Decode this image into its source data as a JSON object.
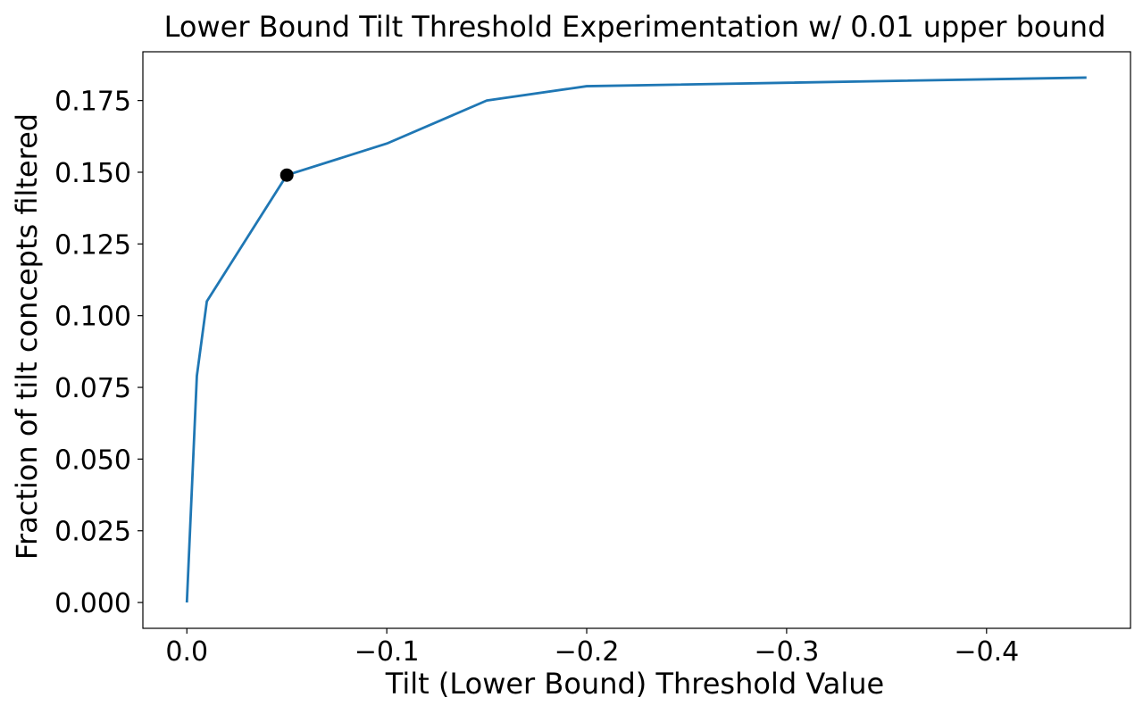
{
  "chart_data": {
    "type": "line",
    "title": "Lower Bound Tilt Threshold Experimentation w/ 0.01 upper bound",
    "xlabel": "Tilt (Lower Bound) Threshold Value",
    "ylabel": "Fraction of tilt concepts filtered",
    "x_inverted": true,
    "xlim": [
      0.022,
      -0.472
    ],
    "ylim": [
      -0.009,
      0.192
    ],
    "x_ticks": [
      0.0,
      -0.1,
      -0.2,
      -0.3,
      -0.4
    ],
    "x_tick_labels": [
      "0.0",
      "−0.1",
      "−0.2",
      "−0.3",
      "−0.4"
    ],
    "y_ticks": [
      0.0,
      0.025,
      0.05,
      0.075,
      0.1,
      0.125,
      0.15,
      0.175
    ],
    "y_tick_labels": [
      "0.000",
      "0.025",
      "0.050",
      "0.075",
      "0.100",
      "0.125",
      "0.150",
      "0.175"
    ],
    "grid": false,
    "series": [
      {
        "color": "#1f77b4",
        "x": [
          0.0,
          -0.005,
          -0.01,
          -0.05,
          -0.1,
          -0.15,
          -0.2,
          -0.45
        ],
        "y": [
          0.0,
          0.079,
          0.105,
          0.149,
          0.16,
          0.175,
          0.18,
          0.183
        ]
      }
    ],
    "highlight_point": {
      "x": -0.05,
      "y": 0.149,
      "color": "#000000"
    }
  }
}
